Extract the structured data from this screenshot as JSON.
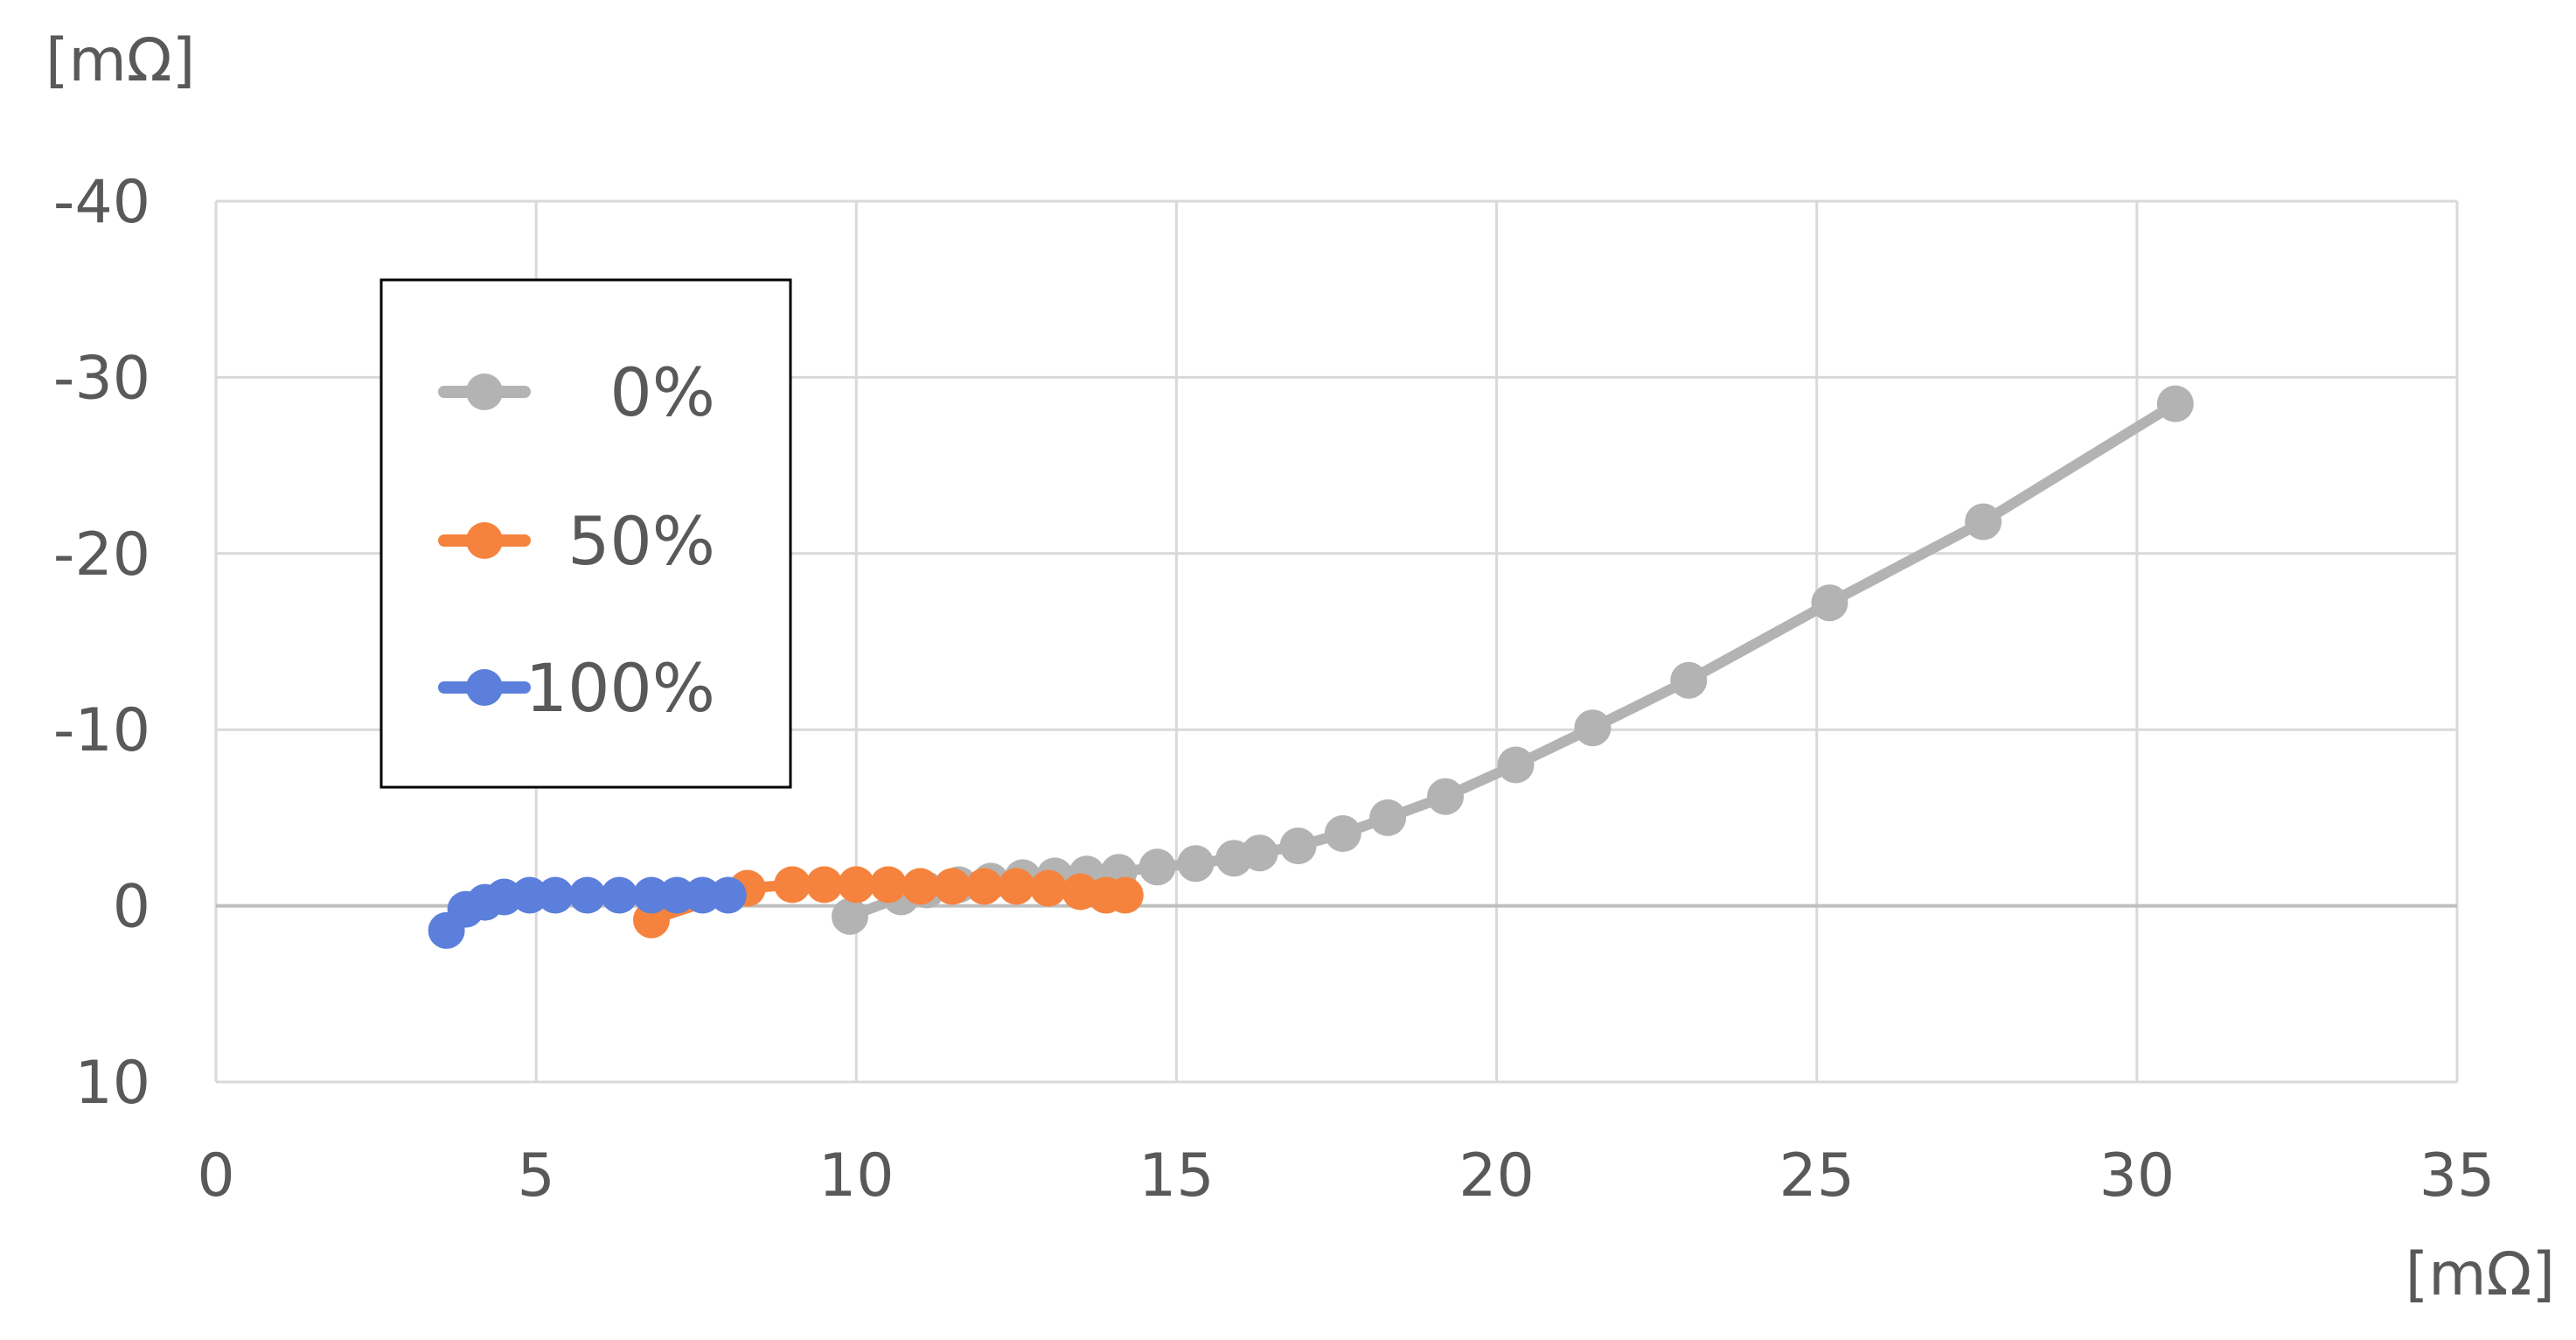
{
  "chart_data": {
    "type": "scatter",
    "title": "",
    "x_unit": "[mΩ]",
    "y_unit": "[mΩ]",
    "xlim": [
      0,
      35
    ],
    "ylim": [
      10,
      -40
    ],
    "y_axis_inverted": true,
    "x_ticks": [
      "0",
      "5",
      "10",
      "15",
      "20",
      "25",
      "30",
      "35"
    ],
    "y_ticks": [
      "-40",
      "-30",
      "-20",
      "-10",
      "0",
      "10"
    ],
    "grid": true,
    "legend_position": "upper-left",
    "series": [
      {
        "name": "0%",
        "color": "#B3B3B3",
        "points": [
          [
            9.9,
            0.6
          ],
          [
            10.7,
            -0.5
          ],
          [
            11.1,
            -0.9
          ],
          [
            11.6,
            -1.2
          ],
          [
            12.1,
            -1.4
          ],
          [
            12.6,
            -1.6
          ],
          [
            13.1,
            -1.7
          ],
          [
            13.6,
            -1.8
          ],
          [
            14.1,
            -1.9
          ],
          [
            14.7,
            -2.2
          ],
          [
            15.3,
            -2.4
          ],
          [
            15.9,
            -2.7
          ],
          [
            16.3,
            -3.0
          ],
          [
            16.9,
            -3.4
          ],
          [
            17.6,
            -4.1
          ],
          [
            18.3,
            -5.0
          ],
          [
            19.2,
            -6.2
          ],
          [
            20.3,
            -8.0
          ],
          [
            21.5,
            -10.1
          ],
          [
            23.0,
            -12.8
          ],
          [
            25.2,
            -17.2
          ],
          [
            27.6,
            -21.8
          ],
          [
            30.6,
            -28.5
          ]
        ]
      },
      {
        "name": "50%",
        "color": "#F5833D",
        "points": [
          [
            6.8,
            0.8
          ],
          [
            8.3,
            -1.0
          ],
          [
            9.0,
            -1.2
          ],
          [
            9.5,
            -1.2
          ],
          [
            10.0,
            -1.2
          ],
          [
            10.5,
            -1.2
          ],
          [
            11.0,
            -1.1
          ],
          [
            11.5,
            -1.1
          ],
          [
            12.0,
            -1.1
          ],
          [
            12.5,
            -1.1
          ],
          [
            13.0,
            -1.0
          ],
          [
            13.5,
            -0.8
          ],
          [
            13.9,
            -0.6
          ],
          [
            14.2,
            -0.6
          ]
        ]
      },
      {
        "name": "100%",
        "color": "#5B7FDB",
        "points": [
          [
            3.6,
            1.4
          ],
          [
            3.9,
            0.2
          ],
          [
            4.2,
            -0.2
          ],
          [
            4.5,
            -0.5
          ],
          [
            4.9,
            -0.6
          ],
          [
            5.3,
            -0.6
          ],
          [
            5.8,
            -0.6
          ],
          [
            6.3,
            -0.6
          ],
          [
            6.8,
            -0.6
          ],
          [
            7.2,
            -0.6
          ],
          [
            7.6,
            -0.6
          ],
          [
            8.0,
            -0.6
          ]
        ]
      }
    ]
  }
}
